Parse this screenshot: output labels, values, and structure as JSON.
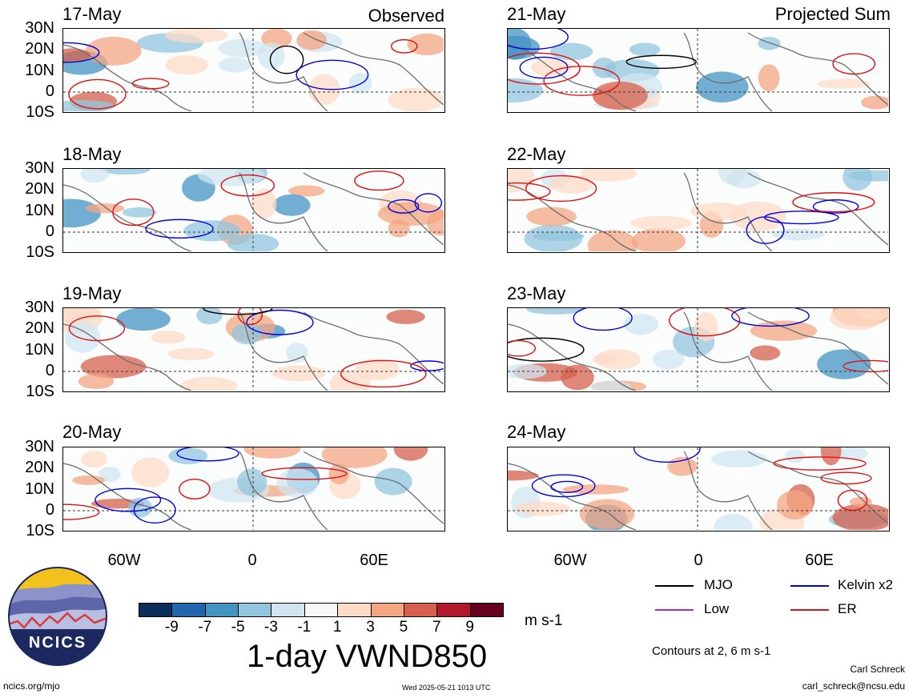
{
  "panels": [
    {
      "date": "17-May",
      "title": "Observed"
    },
    {
      "date": "18-May",
      "title": ""
    },
    {
      "date": "19-May",
      "title": ""
    },
    {
      "date": "20-May",
      "title": ""
    },
    {
      "date": "21-May",
      "title": "Projected Sum"
    },
    {
      "date": "22-May",
      "title": ""
    },
    {
      "date": "23-May",
      "title": ""
    },
    {
      "date": "24-May",
      "title": ""
    }
  ],
  "lat_labels": [
    "30N",
    "20N",
    "10N",
    "0",
    "10S"
  ],
  "lon_labels": [
    "60W",
    "0",
    "60E"
  ],
  "colorbar": {
    "colors": [
      "#0b2f5a",
      "#2166ac",
      "#4393c3",
      "#92c5de",
      "#d1e5f0",
      "#f7f7f7",
      "#fddbc7",
      "#f4a582",
      "#d6604d",
      "#b2182b",
      "#67001f"
    ],
    "labels": [
      "-9",
      "-7",
      "-5",
      "-3",
      "-1",
      "1",
      "3",
      "5",
      "7",
      "9"
    ],
    "units": "m s-1",
    "title": "1-day VWND850"
  },
  "legend": {
    "items": [
      {
        "label": "MJO",
        "color": "#000000"
      },
      {
        "label": "Kelvin x2",
        "color": "#0000dd"
      },
      {
        "label": "Low",
        "color": "#9933cc"
      },
      {
        "label": "ER",
        "color": "#dd1111"
      }
    ],
    "note": "Contours at 2, 6 m s-1"
  },
  "logo": {
    "text": "NCICS"
  },
  "footer": {
    "url": "ncics.org/mjo",
    "timestamp": "Wed 2025-05-21 1013 UTC",
    "author": "Carl Schreck",
    "email": "carl_schreck@ncsu.edu"
  }
}
